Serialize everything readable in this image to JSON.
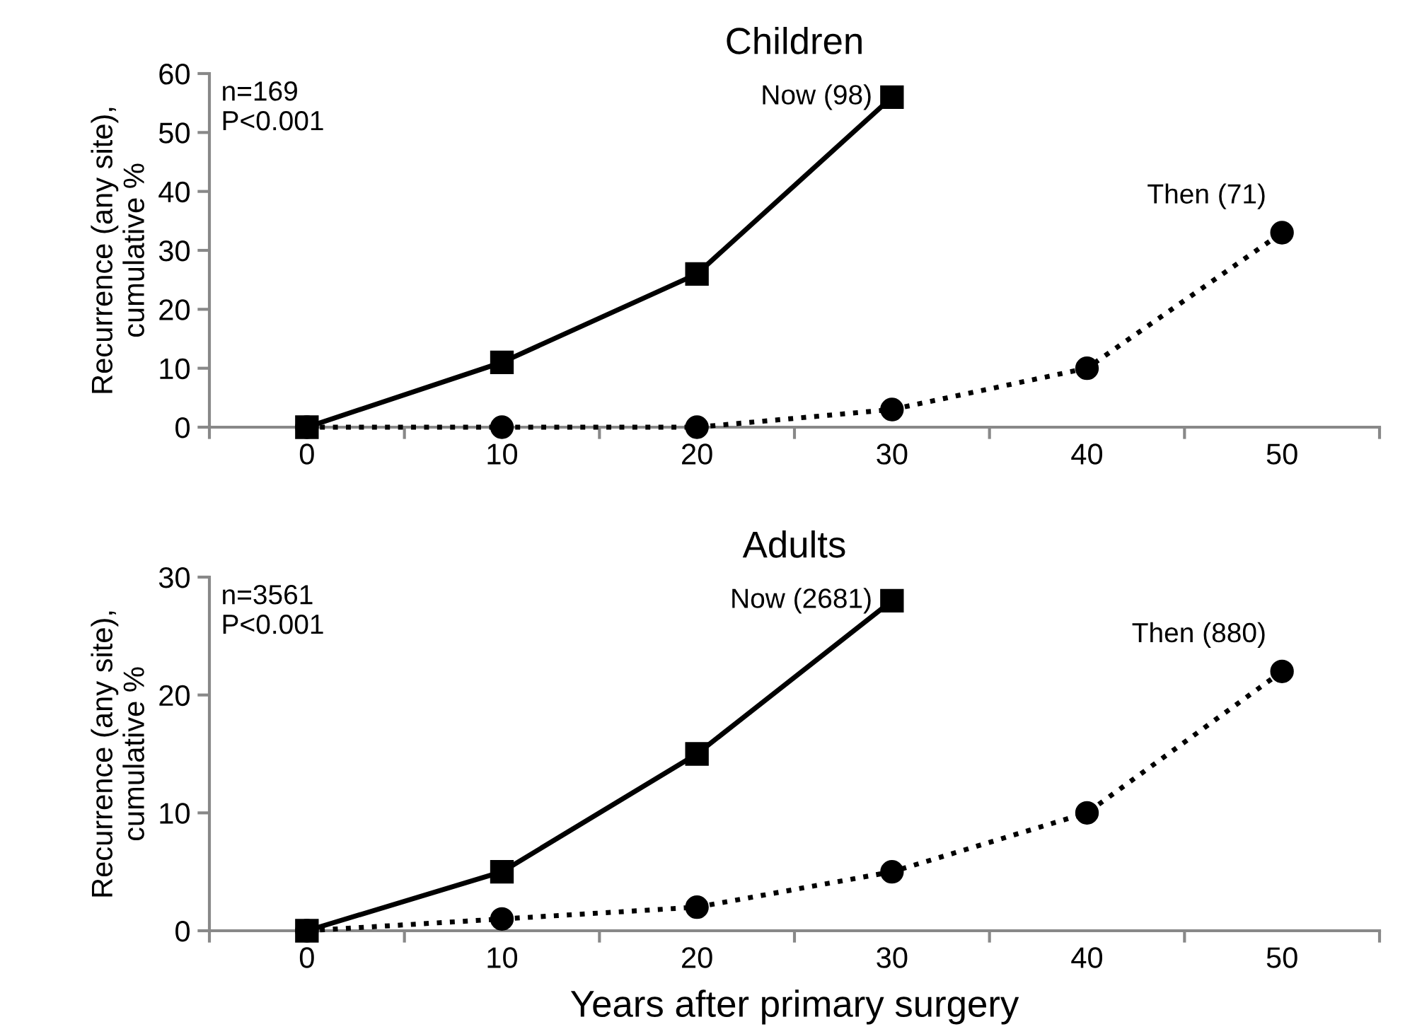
{
  "chart_data": [
    {
      "type": "line",
      "title": "Children",
      "ylabel": "Recurrence (any site),\ncumulative %",
      "categories": [
        "0",
        "10",
        "20",
        "30",
        "40",
        "50"
      ],
      "ylim": [
        0,
        60
      ],
      "yticks": [
        0,
        10,
        20,
        30,
        40,
        50,
        60
      ],
      "grid": false,
      "legend": false,
      "annotations": [
        "n=169\nP<0.001"
      ],
      "series": [
        {
          "name": "Now (98)",
          "color": "#000000",
          "marker": "square",
          "line_style": "solid",
          "values": [
            0,
            11,
            26,
            56,
            null,
            null
          ]
        },
        {
          "name": "Then (71)",
          "color": "#000000",
          "marker": "circle",
          "line_style": "dotted",
          "values": [
            0,
            0,
            0,
            3,
            10,
            33
          ]
        }
      ]
    },
    {
      "type": "line",
      "title": "Adults",
      "ylabel": "Recurrence (any site),\ncumulative %",
      "xlabel": "Years after primary surgery",
      "categories": [
        "0",
        "10",
        "20",
        "30",
        "40",
        "50"
      ],
      "ylim": [
        0,
        30
      ],
      "yticks": [
        0,
        10,
        20,
        30
      ],
      "grid": false,
      "legend": false,
      "annotations": [
        "n=3561\nP<0.001"
      ],
      "series": [
        {
          "name": "Now (2681)",
          "color": "#000000",
          "marker": "square",
          "line_style": "solid",
          "values": [
            0,
            5,
            15,
            28,
            null,
            null
          ]
        },
        {
          "name": "Then (880)",
          "color": "#000000",
          "marker": "circle",
          "line_style": "dotted",
          "values": [
            0,
            1,
            2,
            5,
            10,
            22
          ]
        }
      ]
    }
  ]
}
